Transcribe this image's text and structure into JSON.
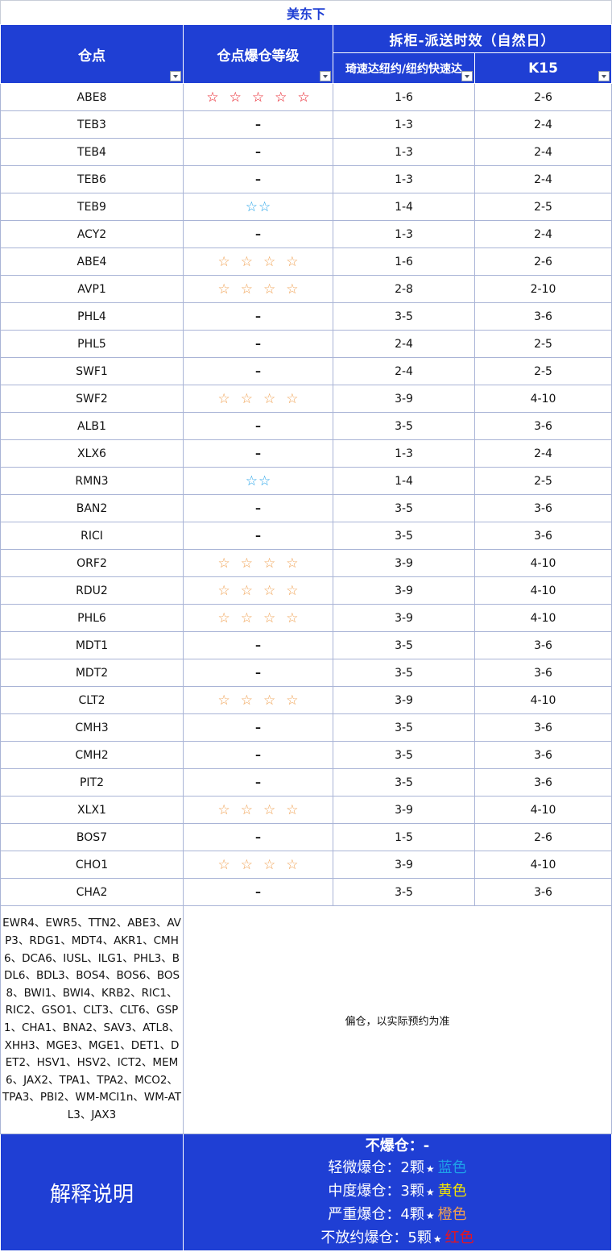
{
  "title": "美东下",
  "headers": {
    "warehouse": "仓点",
    "level": "仓点爆仓等级",
    "group": "拆柜-派送时效（自然日）",
    "sub1": "琦速达纽约/纽约快速达",
    "sub2": "K15"
  },
  "colors": {
    "header_bg": "#1f3fd4",
    "grid": "#a9b4d6",
    "level5_red": "#e8141e",
    "level4_orange": "#f0a050",
    "level2_blue": "#1ea0e8",
    "yellow": "#f2e400"
  },
  "rows": [
    {
      "code": "ABE8",
      "level": 5,
      "stars": "☆☆☆☆☆",
      "t1": "1-6",
      "t2": "2-6"
    },
    {
      "code": "TEB3",
      "level": 0,
      "stars": "–",
      "t1": "1-3",
      "t2": "2-4"
    },
    {
      "code": "TEB4",
      "level": 0,
      "stars": "–",
      "t1": "1-3",
      "t2": "2-4"
    },
    {
      "code": "TEB6",
      "level": 0,
      "stars": "–",
      "t1": "1-3",
      "t2": "2-4"
    },
    {
      "code": "TEB9",
      "level": 2,
      "stars": "☆☆",
      "t1": "1-4",
      "t2": "2-5"
    },
    {
      "code": "ACY2",
      "level": 0,
      "stars": "–",
      "t1": "1-3",
      "t2": "2-4"
    },
    {
      "code": "ABE4",
      "level": 4,
      "stars": "☆☆☆☆",
      "t1": "1-6",
      "t2": "2-6"
    },
    {
      "code": "AVP1",
      "level": 4,
      "stars": "☆☆☆☆",
      "t1": "2-8",
      "t2": "2-10"
    },
    {
      "code": "PHL4",
      "level": 0,
      "stars": "–",
      "t1": "3-5",
      "t2": "3-6"
    },
    {
      "code": "PHL5",
      "level": 0,
      "stars": "–",
      "t1": "2-4",
      "t2": "2-5"
    },
    {
      "code": "SWF1",
      "level": 0,
      "stars": "–",
      "t1": "2-4",
      "t2": "2-5"
    },
    {
      "code": "SWF2",
      "level": 4,
      "stars": "☆☆☆☆",
      "t1": "3-9",
      "t2": "4-10"
    },
    {
      "code": "ALB1",
      "level": 0,
      "stars": "–",
      "t1": "3-5",
      "t2": "3-6"
    },
    {
      "code": "XLX6",
      "level": 0,
      "stars": "–",
      "t1": "1-3",
      "t2": "2-4"
    },
    {
      "code": "RMN3",
      "level": 2,
      "stars": "☆☆",
      "t1": "1-4",
      "t2": "2-5"
    },
    {
      "code": "BAN2",
      "level": 0,
      "stars": "–",
      "t1": "3-5",
      "t2": "3-6"
    },
    {
      "code": "RICI",
      "level": 0,
      "stars": "–",
      "t1": "3-5",
      "t2": "3-6"
    },
    {
      "code": "ORF2",
      "level": 4,
      "stars": "☆☆☆☆",
      "t1": "3-9",
      "t2": "4-10"
    },
    {
      "code": "RDU2",
      "level": 4,
      "stars": "☆☆☆☆",
      "t1": "3-9",
      "t2": "4-10"
    },
    {
      "code": "PHL6",
      "level": 4,
      "stars": "☆☆☆☆",
      "t1": "3-9",
      "t2": "4-10"
    },
    {
      "code": "MDT1",
      "level": 0,
      "stars": "–",
      "t1": "3-5",
      "t2": "3-6"
    },
    {
      "code": "MDT2",
      "level": 0,
      "stars": "–",
      "t1": "3-5",
      "t2": "3-6"
    },
    {
      "code": "CLT2",
      "level": 4,
      "stars": "☆☆☆☆",
      "t1": "3-9",
      "t2": "4-10"
    },
    {
      "code": "CMH3",
      "level": 0,
      "stars": "–",
      "t1": "3-5",
      "t2": "3-6"
    },
    {
      "code": "CMH2",
      "level": 0,
      "stars": "–",
      "t1": "3-5",
      "t2": "3-6"
    },
    {
      "code": "PIT2",
      "level": 0,
      "stars": "–",
      "t1": "3-5",
      "t2": "3-6"
    },
    {
      "code": "XLX1",
      "level": 4,
      "stars": "☆☆☆☆",
      "t1": "3-9",
      "t2": "4-10"
    },
    {
      "code": "BOS7",
      "level": 0,
      "stars": "–",
      "t1": "1-5",
      "t2": "2-6"
    },
    {
      "code": "CHO1",
      "level": 4,
      "stars": "☆☆☆☆",
      "t1": "3-9",
      "t2": "4-10"
    },
    {
      "code": "CHA2",
      "level": 0,
      "stars": "–",
      "t1": "3-5",
      "t2": "3-6"
    }
  ],
  "remote_list": "EWR4、EWR5、TTN2、ABE3、AVP3、RDG1、MDT4、AKR1、CMH6、DCA6、IUSL、ILG1、PHL3、BDL6、BDL3、BOS4、BOS6、BOS8、BWI1、BWI4、KRB2、RIC1、RIC2、GSO1、CLT3、CLT6、GSP1、CHA1、BNA2、SAV3、ATL8、XHH3、MGE3、MGE1、DET1、DET2、HSV1、HSV2、ICT2、MEM6、JAX2、TPA1、TPA2、MCO2、TPA3、PBI2、WM-MCI1n、WM-ATL3、JAX3",
  "remote_note": "偏仓，以实际预约为准",
  "legend": {
    "title": "解释说明",
    "none": "不爆仓：-",
    "light_prefix": "轻微爆仓：2颗",
    "light_color": "蓝色",
    "medium_prefix": "中度爆仓：3颗",
    "medium_color": "黄色",
    "severe_prefix": "严重爆仓：4颗",
    "severe_color": "橙色",
    "extreme_prefix": "不放约爆仓：5颗",
    "extreme_color": "红色",
    "star": "★"
  }
}
